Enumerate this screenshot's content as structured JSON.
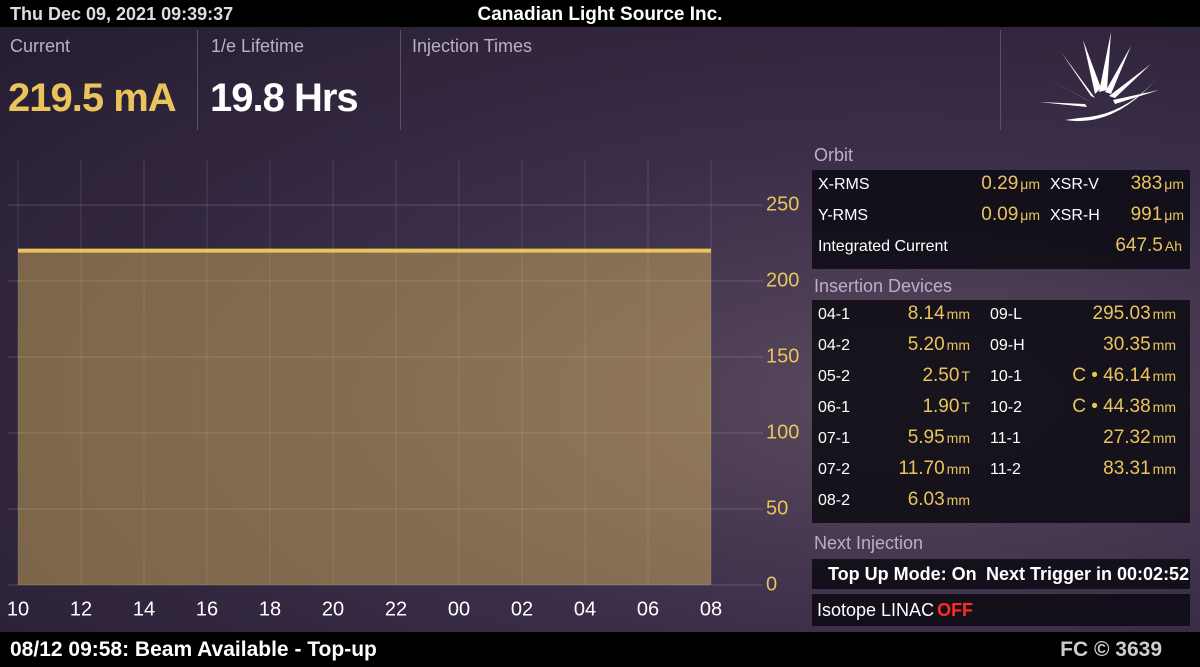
{
  "top_bar": {
    "datetime": "Thu Dec 09, 2021 09:39:37",
    "title": "Canadian Light Source Inc."
  },
  "header": {
    "panels": [
      {
        "label": "Current",
        "value": "219.5 mA"
      },
      {
        "label": "1/e Lifetime",
        "value": "19.8 Hrs"
      },
      {
        "label": "Injection Times"
      }
    ]
  },
  "chart_data": {
    "type": "area",
    "categories": [
      "10",
      "12",
      "14",
      "16",
      "18",
      "20",
      "22",
      "00",
      "02",
      "04",
      "06",
      "08"
    ],
    "values": [
      220,
      220,
      220,
      220,
      220,
      220,
      220,
      220,
      220,
      220,
      220,
      220
    ],
    "ylim": [
      0,
      250
    ],
    "yticks": [
      0,
      50,
      100,
      150,
      200,
      250
    ],
    "color": "#e9c45c",
    "grid": true
  },
  "orbit": {
    "heading": "Orbit",
    "rows": [
      [
        "X-RMS",
        "0.29",
        "μm",
        "XSR-V",
        "383",
        "μm"
      ],
      [
        "Y-RMS",
        "0.09",
        "μm",
        "XSR-H",
        "991",
        "μm"
      ],
      [
        "Integrated Current",
        "647.5",
        "Ah"
      ]
    ]
  },
  "insertion_devices": {
    "heading": "Insertion Devices",
    "rows": [
      [
        "04-1",
        "8.14",
        "mm",
        "09-L",
        "295.03",
        "mm"
      ],
      [
        "04-2",
        "5.20",
        "mm",
        "09-H",
        "30.35",
        "mm"
      ],
      [
        "05-2",
        "2.50",
        "T",
        "10-1",
        "C • 46.14",
        "mm"
      ],
      [
        "06-1",
        "1.90",
        "T",
        "10-2",
        "C • 44.38",
        "mm"
      ],
      [
        "07-1",
        "5.95",
        "mm",
        "11-1",
        "27.32",
        "mm"
      ],
      [
        "07-2",
        "11.70",
        "mm",
        "11-2",
        "83.31",
        "mm"
      ],
      [
        "08-2",
        "6.03",
        "mm"
      ]
    ]
  },
  "next_injection": {
    "heading": "Next Injection",
    "mode": "Top Up Mode: On",
    "trigger": "Next Trigger in 00:02:52"
  },
  "isotope": {
    "label": "Isotope LINAC",
    "status": "OFF"
  },
  "bottom_bar": {
    "message": "08/12 09:58: Beam Available - Top-up",
    "code": "FC © 3639"
  }
}
